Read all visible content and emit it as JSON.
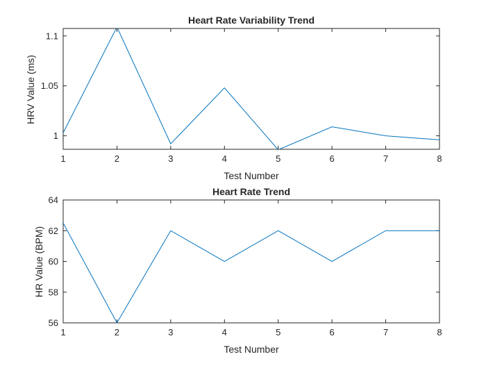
{
  "chart_data": [
    {
      "type": "line",
      "title": "Heart Rate Variability Trend",
      "xlabel": "Test Number",
      "ylabel": "HRV Value (ms)",
      "x": [
        1,
        2,
        3,
        4,
        5,
        6,
        7,
        8
      ],
      "series": [
        {
          "values": [
            1.003,
            1.109,
            0.992,
            1.048,
            0.986,
            1.009,
            1.0,
            0.996
          ]
        }
      ],
      "xlim": [
        1,
        8
      ],
      "ylim": [
        0.9865,
        1.1075
      ],
      "xticks": [
        "1",
        "2",
        "3",
        "4",
        "5",
        "6",
        "7",
        "8"
      ],
      "yticks": [
        1,
        1.05,
        1.1
      ],
      "ytick_labels": [
        "1",
        "1.05",
        "1.1"
      ],
      "grid": false,
      "color": "#0072BD"
    },
    {
      "type": "line",
      "title": "Heart Rate Trend",
      "xlabel": "Test Number",
      "ylabel": "HR Value (BPM)",
      "x": [
        1,
        2,
        3,
        4,
        5,
        6,
        7,
        8
      ],
      "series": [
        {
          "values": [
            62.5,
            56,
            62,
            60,
            62,
            60,
            62,
            62
          ]
        }
      ],
      "xlim": [
        1,
        8
      ],
      "ylim": [
        56,
        64
      ],
      "xticks": [
        "1",
        "2",
        "3",
        "4",
        "5",
        "6",
        "7",
        "8"
      ],
      "yticks": [
        56,
        58,
        60,
        62,
        64
      ],
      "ytick_labels": [
        "56",
        "58",
        "60",
        "62",
        "64"
      ],
      "grid": false,
      "color": "#0072BD"
    }
  ]
}
